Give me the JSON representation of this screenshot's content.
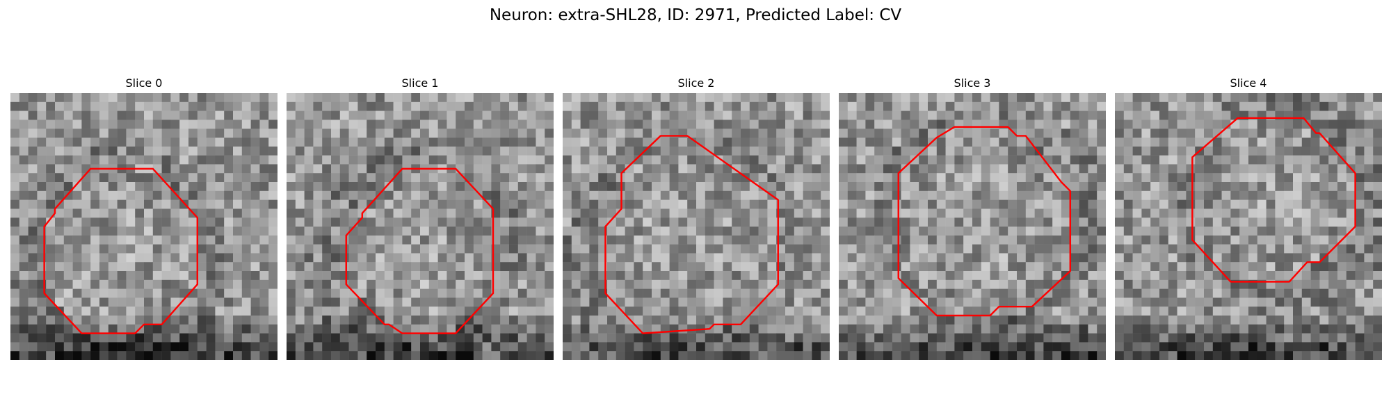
{
  "figure": {
    "title": "Neuron: extra-SHL28, ID: 2971, Predicted Label: CV"
  },
  "colors": {
    "contour": "#ff0000",
    "background": "#ffffff"
  },
  "grid": {
    "cols": 30,
    "rows": 30
  },
  "slices": [
    {
      "label": "Slice 0",
      "seed": 11,
      "dark_bottom": 0.85,
      "contour": [
        [
          9,
          8.5
        ],
        [
          16,
          8.5
        ],
        [
          21,
          14
        ],
        [
          21,
          21.5
        ],
        [
          17,
          26
        ],
        [
          15,
          26
        ],
        [
          14,
          27
        ],
        [
          8,
          27
        ],
        [
          3.8,
          22.5
        ],
        [
          3.8,
          15
        ],
        [
          5,
          13.5
        ],
        [
          5,
          13
        ]
      ]
    },
    {
      "label": "Slice 1",
      "seed": 23,
      "dark_bottom": 0.8,
      "contour": [
        [
          13,
          8.5
        ],
        [
          19,
          8.5
        ],
        [
          23.2,
          13
        ],
        [
          23.2,
          22.5
        ],
        [
          19,
          27
        ],
        [
          13,
          27
        ],
        [
          11.5,
          26
        ],
        [
          11,
          26
        ],
        [
          6.7,
          21.5
        ],
        [
          6.7,
          16
        ],
        [
          8.5,
          14
        ],
        [
          8.5,
          13.5
        ]
      ]
    },
    {
      "label": "Slice 2",
      "seed": 37,
      "dark_bottom": 0.7,
      "contour": [
        [
          11,
          4.8
        ],
        [
          14,
          4.8
        ],
        [
          24.2,
          12
        ],
        [
          24.2,
          21.5
        ],
        [
          20,
          26
        ],
        [
          17,
          26
        ],
        [
          16.5,
          26.5
        ],
        [
          9,
          27
        ],
        [
          4.8,
          22.5
        ],
        [
          4.8,
          15
        ],
        [
          6.6,
          13
        ],
        [
          6.6,
          9
        ]
      ]
    },
    {
      "label": "Slice 3",
      "seed": 51,
      "dark_bottom": 0.9,
      "contour": [
        [
          11,
          5
        ],
        [
          13,
          3.8
        ],
        [
          19,
          3.8
        ],
        [
          20,
          4.8
        ],
        [
          21,
          4.8
        ],
        [
          25,
          10
        ],
        [
          26,
          11
        ],
        [
          26,
          20
        ],
        [
          21.7,
          24
        ],
        [
          18,
          24
        ],
        [
          17,
          25
        ],
        [
          11,
          25
        ],
        [
          6.7,
          20.8
        ],
        [
          6.7,
          9
        ]
      ]
    },
    {
      "label": "Slice 4",
      "seed": 67,
      "dark_bottom": 0.9,
      "contour": [
        [
          13.8,
          2.8
        ],
        [
          21.2,
          2.8
        ],
        [
          22.6,
          4.5
        ],
        [
          23,
          4.5
        ],
        [
          27,
          9
        ],
        [
          27,
          15
        ],
        [
          23,
          19
        ],
        [
          21.6,
          19
        ],
        [
          19.6,
          21.2
        ],
        [
          13,
          21.2
        ],
        [
          8.7,
          16.5
        ],
        [
          8.7,
          7.2
        ]
      ]
    }
  ]
}
